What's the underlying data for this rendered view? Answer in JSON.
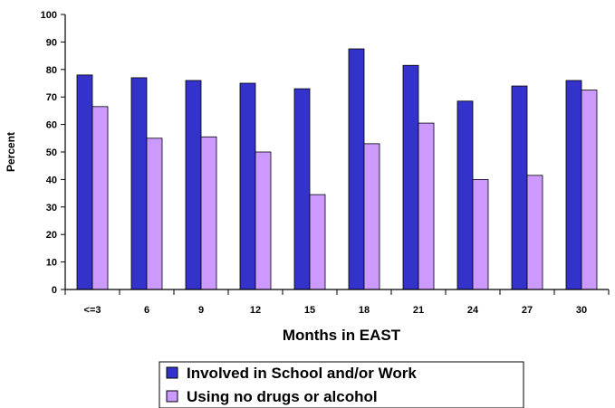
{
  "chart_data": {
    "type": "bar",
    "categories": [
      "<=3",
      "6",
      "9",
      "12",
      "15",
      "18",
      "21",
      "24",
      "27",
      "30"
    ],
    "series": [
      {
        "name": "Involved in School and/or Work",
        "color": "#3333cc",
        "values": [
          78,
          77,
          76,
          75,
          73,
          87.5,
          81.5,
          68.5,
          74,
          76
        ]
      },
      {
        "name": "Using no drugs or alcohol",
        "color": "#cc99ff",
        "values": [
          66.5,
          55,
          55.5,
          50,
          34.5,
          53,
          60.5,
          40,
          41.5,
          72.5
        ]
      }
    ],
    "xlabel": "Months in EAST",
    "ylabel": "Percent",
    "ylim": [
      0,
      100
    ],
    "yticks": [
      0,
      10,
      20,
      30,
      40,
      50,
      60,
      70,
      80,
      90,
      100
    ],
    "grid": false,
    "legend_position": "bottom"
  }
}
